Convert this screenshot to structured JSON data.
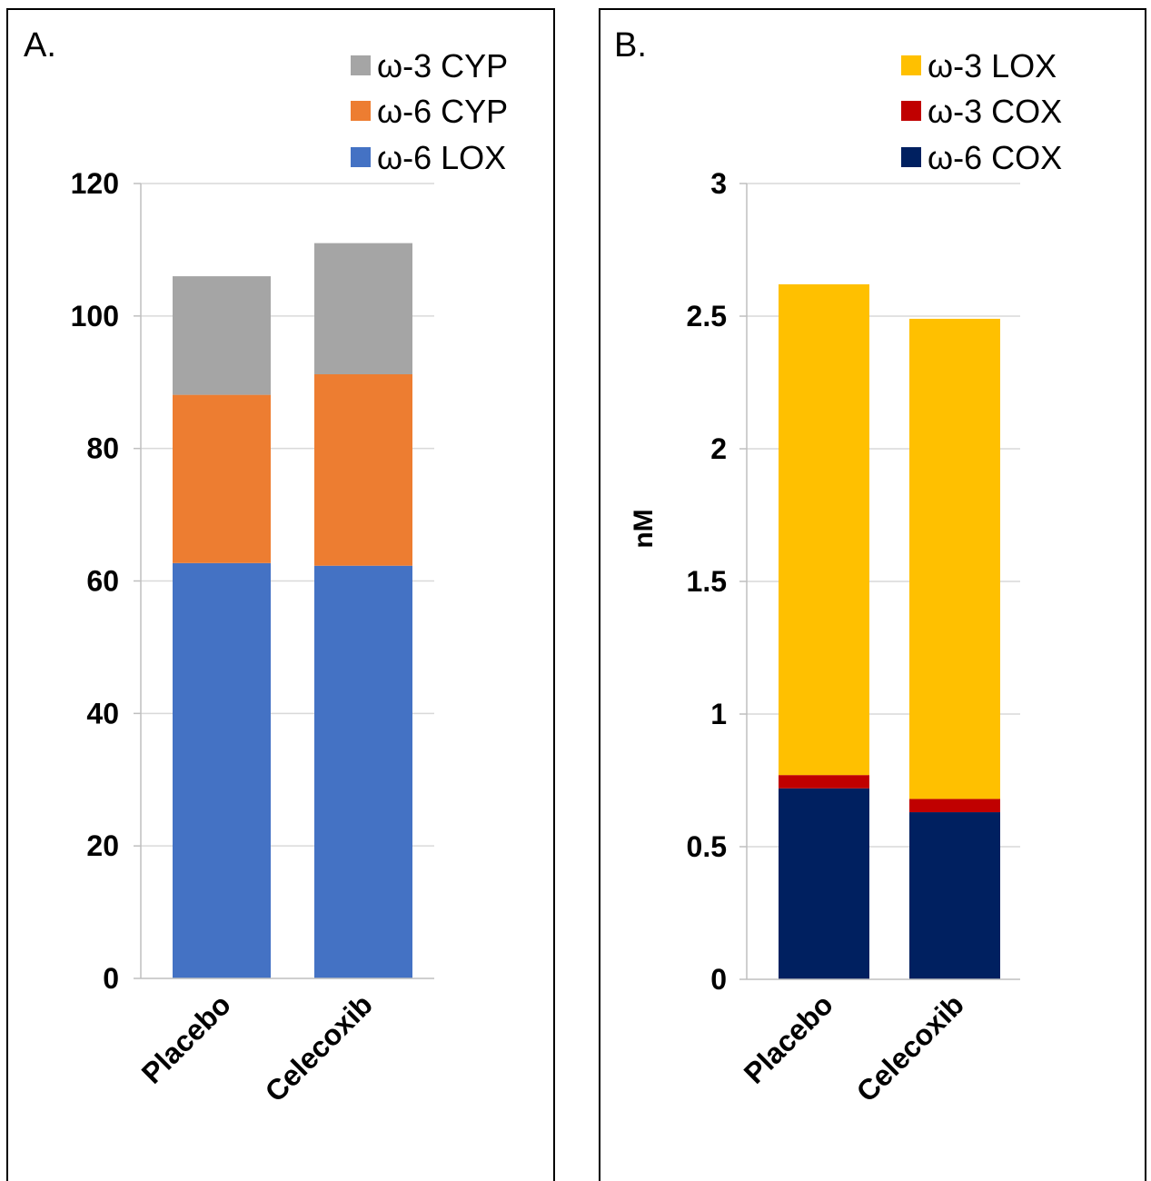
{
  "chart_data": [
    {
      "type": "bar",
      "stacked": true,
      "panel_label": "A.",
      "title": "",
      "xlabel": "",
      "ylabel": "",
      "categories": [
        "Placebo",
        "Celecoxib"
      ],
      "ylim": [
        0,
        120
      ],
      "yticks": [
        0,
        20,
        40,
        60,
        80,
        100,
        120
      ],
      "grid": true,
      "legend_position": "top-right",
      "series": [
        {
          "name": "ω-6 LOX",
          "color": "#4472C4",
          "values": [
            62.7,
            62.3
          ]
        },
        {
          "name": "ω-6 CYP",
          "color": "#ED7D31",
          "values": [
            25.4,
            28.9
          ]
        },
        {
          "name": "ω-3 CYP",
          "color": "#A5A5A5",
          "values": [
            17.9,
            19.8
          ]
        }
      ]
    },
    {
      "type": "bar",
      "stacked": true,
      "panel_label": "B.",
      "title": "",
      "xlabel": "",
      "ylabel": "nM",
      "categories": [
        "Placebo",
        "Celecoxib"
      ],
      "ylim": [
        0,
        3
      ],
      "yticks": [
        0,
        0.5,
        1,
        1.5,
        2,
        2.5,
        3
      ],
      "grid": true,
      "legend_position": "top-right",
      "series": [
        {
          "name": "ω-6 COX",
          "color": "#002060",
          "values": [
            0.72,
            0.63
          ]
        },
        {
          "name": "ω-3 COX",
          "color": "#C00000",
          "values": [
            0.05,
            0.05
          ]
        },
        {
          "name": "ω-3 LOX",
          "color": "#FFC000",
          "values": [
            1.85,
            1.81
          ]
        }
      ]
    }
  ]
}
